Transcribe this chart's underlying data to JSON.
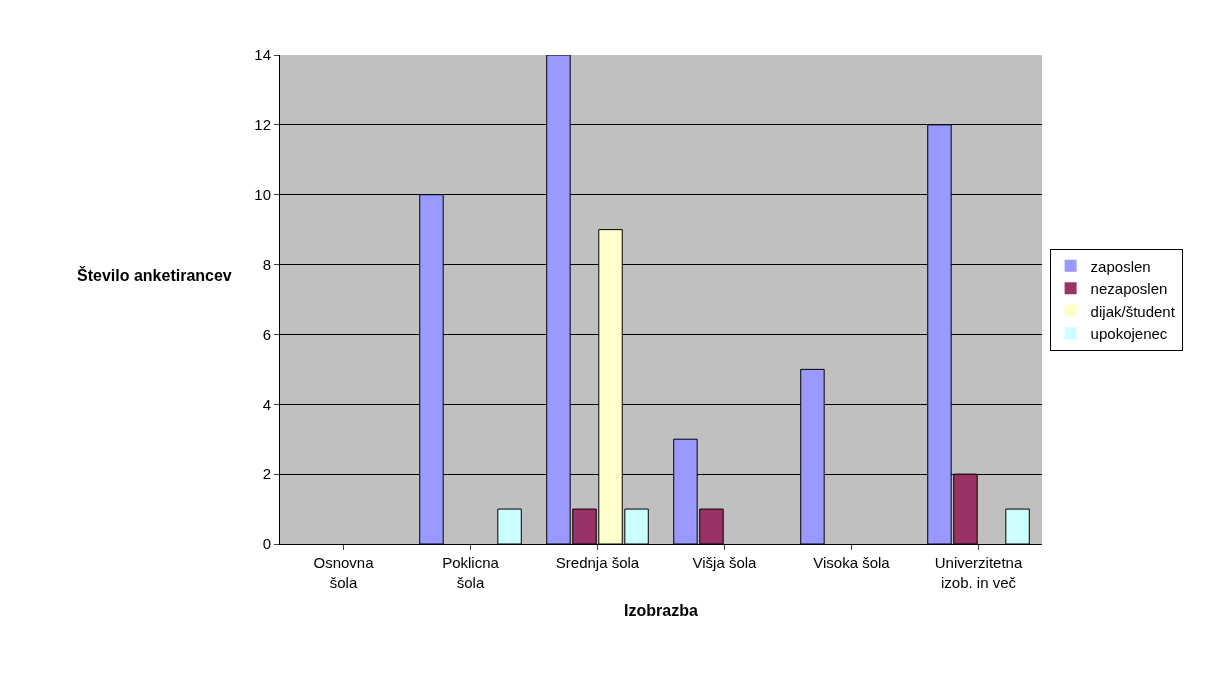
{
  "chart_data": {
    "type": "bar",
    "xlabel": "Izobrazba",
    "ylabel": "Število anketirancev",
    "categories": [
      "Osnovna\nšola",
      "Poklicna\nšola",
      "Srednja šola",
      "Višja šola",
      "Visoka šola",
      "Univerzitetna\nizob. in več"
    ],
    "series": [
      {
        "name": "zaposlen",
        "color": "#9999ff",
        "values": [
          0,
          10,
          14,
          3,
          5,
          12
        ]
      },
      {
        "name": "nezaposlen",
        "color": "#993366",
        "values": [
          0,
          0,
          1,
          1,
          0,
          2
        ]
      },
      {
        "name": "dijak/študent",
        "color": "#ffffcc",
        "values": [
          0,
          0,
          9,
          0,
          0,
          0
        ]
      },
      {
        "name": "upokojenec",
        "color": "#ccffff",
        "values": [
          0,
          1,
          1,
          0,
          0,
          1
        ]
      }
    ],
    "ylim": [
      0,
      14
    ],
    "yticks": [
      0,
      2,
      4,
      6,
      8,
      10,
      12,
      14
    ],
    "grid": "y",
    "legend": "right"
  }
}
